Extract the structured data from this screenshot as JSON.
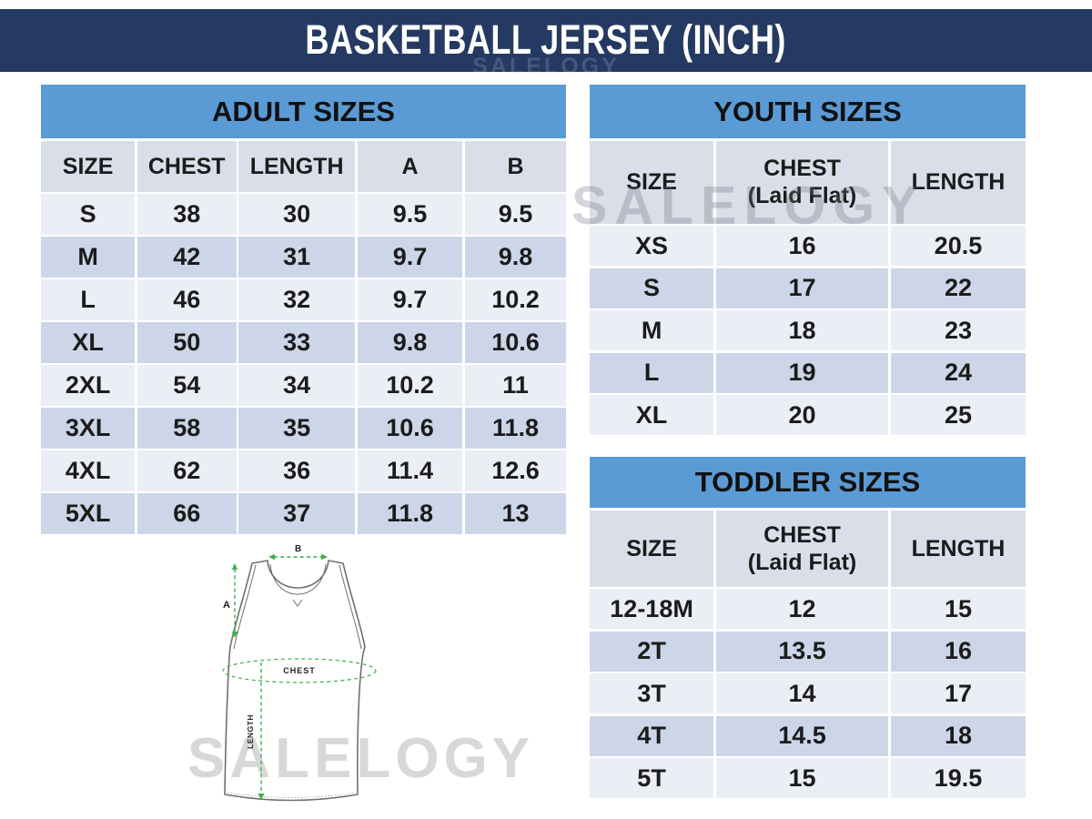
{
  "title": "BASKETBALL JERSEY (INCH)",
  "watermark": {
    "text": "SALELOGY"
  },
  "colors": {
    "title_bar": "#243a62",
    "band_blue": "#5b9bd5",
    "header_row": "#d9dee9",
    "row_light": "#ebeef5",
    "row_dark": "#ccd6e8",
    "measure_green": "#3cae4a",
    "watermark_gray": "#d8d8d8"
  },
  "chart_data": [
    {
      "type": "table",
      "title": "ADULT SIZES",
      "columns": [
        "SIZE",
        "CHEST",
        "LENGTH",
        "A",
        "B"
      ],
      "rows": [
        [
          "S",
          "38",
          "30",
          "9.5",
          "9.5"
        ],
        [
          "M",
          "42",
          "31",
          "9.7",
          "9.8"
        ],
        [
          "L",
          "46",
          "32",
          "9.7",
          "10.2"
        ],
        [
          "XL",
          "50",
          "33",
          "9.8",
          "10.6"
        ],
        [
          "2XL",
          "54",
          "34",
          "10.2",
          "11"
        ],
        [
          "3XL",
          "58",
          "35",
          "10.6",
          "11.8"
        ],
        [
          "4XL",
          "62",
          "36",
          "11.4",
          "12.6"
        ],
        [
          "5XL",
          "66",
          "37",
          "11.8",
          "13"
        ]
      ]
    },
    {
      "type": "table",
      "title": "YOUTH SIZES",
      "columns": [
        "SIZE",
        "CHEST\n(Laid Flat)",
        "LENGTH"
      ],
      "rows": [
        [
          "XS",
          "16",
          "20.5"
        ],
        [
          "S",
          "17",
          "22"
        ],
        [
          "M",
          "18",
          "23"
        ],
        [
          "L",
          "19",
          "24"
        ],
        [
          "XL",
          "20",
          "25"
        ]
      ]
    },
    {
      "type": "table",
      "title": "TODDLER SIZES",
      "columns": [
        "SIZE",
        "CHEST\n(Laid Flat)",
        "LENGTH"
      ],
      "rows": [
        [
          "12-18M",
          "12",
          "15"
        ],
        [
          "2T",
          "13.5",
          "16"
        ],
        [
          "3T",
          "14",
          "17"
        ],
        [
          "4T",
          "14.5",
          "18"
        ],
        [
          "5T",
          "15",
          "19.5"
        ]
      ]
    }
  ],
  "diagram": {
    "label_a": "A",
    "label_b": "B",
    "label_chest": "CHEST",
    "label_length": "LENGTH"
  }
}
